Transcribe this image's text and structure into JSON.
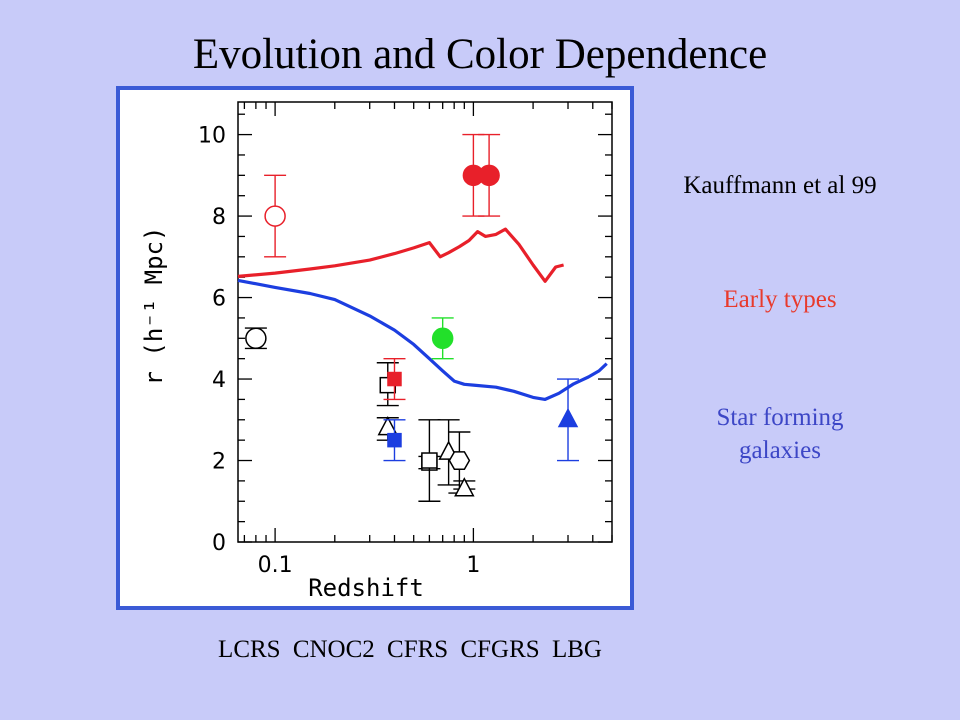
{
  "title": "Evolution and Color Dependence",
  "annotations": {
    "model": "Kauffmann et al 99",
    "early": "Early types",
    "starform_line1": "Star forming",
    "starform_line2": "galaxies"
  },
  "surveys": [
    "LCRS",
    "CNOC2",
    "CFRS",
    "CFGRS",
    "LBG"
  ],
  "colors": {
    "red": "#e8202a",
    "blue": "#1c3ee0",
    "green": "#22e02a",
    "black": "#000000"
  },
  "chart_data": {
    "type": "scatter",
    "xlabel": "Redshift",
    "ylabel": "r (h⁻¹ Mpc)",
    "xscale": "log",
    "xlim": [
      0.065,
      5.0
    ],
    "ylim": [
      0,
      10.8
    ],
    "xticks": [
      0.1,
      1
    ],
    "yticks": [
      0,
      2,
      4,
      6,
      8,
      10
    ],
    "curves": [
      {
        "color": "red",
        "points": [
          [
            0.065,
            6.52
          ],
          [
            0.1,
            6.6
          ],
          [
            0.15,
            6.7
          ],
          [
            0.2,
            6.78
          ],
          [
            0.3,
            6.92
          ],
          [
            0.4,
            7.08
          ],
          [
            0.5,
            7.22
          ],
          [
            0.6,
            7.35
          ],
          [
            0.68,
            7.0
          ],
          [
            0.75,
            7.1
          ],
          [
            0.85,
            7.25
          ],
          [
            0.95,
            7.4
          ],
          [
            1.05,
            7.62
          ],
          [
            1.15,
            7.5
          ],
          [
            1.3,
            7.55
          ],
          [
            1.45,
            7.68
          ],
          [
            1.7,
            7.3
          ],
          [
            2.0,
            6.8
          ],
          [
            2.3,
            6.4
          ],
          [
            2.6,
            6.75
          ],
          [
            2.85,
            6.8
          ]
        ]
      },
      {
        "color": "blue",
        "points": [
          [
            0.065,
            6.42
          ],
          [
            0.1,
            6.25
          ],
          [
            0.15,
            6.1
          ],
          [
            0.2,
            5.95
          ],
          [
            0.3,
            5.55
          ],
          [
            0.4,
            5.2
          ],
          [
            0.5,
            4.85
          ],
          [
            0.6,
            4.5
          ],
          [
            0.7,
            4.2
          ],
          [
            0.8,
            3.95
          ],
          [
            0.9,
            3.87
          ],
          [
            1.0,
            3.85
          ],
          [
            1.3,
            3.8
          ],
          [
            1.6,
            3.7
          ],
          [
            2.0,
            3.55
          ],
          [
            2.3,
            3.5
          ],
          [
            2.7,
            3.65
          ],
          [
            3.2,
            3.88
          ],
          [
            3.8,
            4.05
          ],
          [
            4.3,
            4.2
          ],
          [
            4.7,
            4.38
          ]
        ]
      }
    ],
    "points": [
      {
        "x": 0.1,
        "y": 8.0,
        "yerr": [
          7.0,
          9.0
        ],
        "marker": "circle-open",
        "color": "red"
      },
      {
        "x": 0.08,
        "y": 5.0,
        "yerr": [
          4.75,
          5.25
        ],
        "marker": "circle-open",
        "color": "black"
      },
      {
        "x": 0.37,
        "y": 3.85,
        "yerr": [
          3.35,
          4.4
        ],
        "marker": "square-open",
        "color": "black"
      },
      {
        "x": 0.4,
        "y": 4.0,
        "yerr": [
          3.5,
          4.5
        ],
        "marker": "square-filled",
        "color": "red"
      },
      {
        "x": 0.37,
        "y": 2.8,
        "yerr": [
          2.5,
          3.05
        ],
        "marker": "triangle-open",
        "color": "black"
      },
      {
        "x": 0.4,
        "y": 2.5,
        "yerr": [
          2.0,
          3.0
        ],
        "marker": "square-filled",
        "color": "blue"
      },
      {
        "x": 0.6,
        "y": 1.95,
        "yerr": [
          1.8,
          2.1
        ],
        "marker": "square-open",
        "color": "black"
      },
      {
        "x": 0.6,
        "y": 2.0,
        "yerr": [
          1.0,
          3.0
        ],
        "marker": "square-open",
        "color": "black"
      },
      {
        "x": 0.75,
        "y": 2.2,
        "yerr": [
          1.4,
          3.0
        ],
        "marker": "triangle-open",
        "color": "black"
      },
      {
        "x": 0.85,
        "y": 2.0,
        "yerr": [
          1.2,
          2.7
        ],
        "marker": "hexagon-open",
        "color": "black"
      },
      {
        "x": 0.9,
        "y": 1.3,
        "yerr": [
          1.3,
          1.5
        ],
        "marker": "triangle-open",
        "color": "black"
      },
      {
        "x": 0.7,
        "y": 5.0,
        "yerr": [
          4.5,
          5.5
        ],
        "marker": "circle-filled",
        "color": "green"
      },
      {
        "x": 1.0,
        "y": 9.0,
        "yerr": [
          8.0,
          10.0
        ],
        "marker": "circle-filled",
        "color": "red"
      },
      {
        "x": 1.2,
        "y": 9.0,
        "yerr": [
          8.0,
          10.0
        ],
        "marker": "circle-filled",
        "color": "red"
      },
      {
        "x": 3.0,
        "y": 3.0,
        "yerr": [
          2.0,
          4.0
        ],
        "marker": "triangle-filled",
        "color": "blue"
      }
    ]
  }
}
